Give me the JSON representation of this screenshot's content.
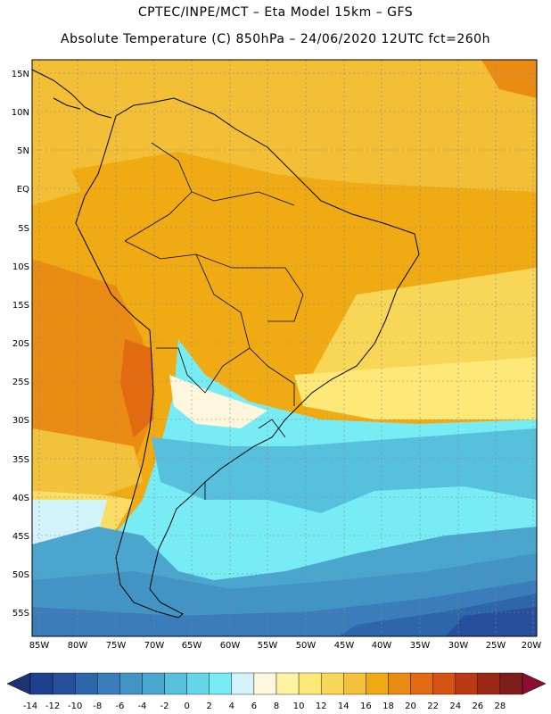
{
  "header": {
    "line1": "CPTEC/INPE/MCT –  Eta Model 15km – GFS",
    "line2": "Absolute Temperature (C) 850hPa – 24/06/2020 12UTC fct=260h"
  },
  "map": {
    "lat_labels": [
      "15N",
      "10N",
      "5N",
      "EQ",
      "5S",
      "10S",
      "15S",
      "20S",
      "25S",
      "30S",
      "35S",
      "40S",
      "45S",
      "50S",
      "55S"
    ],
    "lon_labels": [
      "85W",
      "80W",
      "75W",
      "70W",
      "65W",
      "60W",
      "55W",
      "50W",
      "45W",
      "40W",
      "35W",
      "30W",
      "25W",
      "20W"
    ],
    "coast_color": "#000000"
  },
  "colorbar": {
    "labels": [
      "-14",
      "-12",
      "-10",
      "-8",
      "-6",
      "-4",
      "-2",
      "0",
      "2",
      "4",
      "6",
      "8",
      "10",
      "12",
      "14",
      "16",
      "18",
      "20",
      "22",
      "24",
      "26",
      "28"
    ],
    "colors": [
      "#1f3f8f",
      "#274f9c",
      "#2e66ab",
      "#3a7dba",
      "#4294c5",
      "#4aa6cf",
      "#57c0dc",
      "#66d7e8",
      "#77ecf4",
      "#d3f3fb",
      "#fdf8dd",
      "#fdf3a3",
      "#fde878",
      "#f8d658",
      "#f3c23d",
      "#f0ab14",
      "#ea8c14",
      "#e26a10",
      "#d45312",
      "#b93a14",
      "#9b2816",
      "#7f1d1a"
    ],
    "under_color": "#1e3274",
    "over_color": "#8a0e32"
  }
}
